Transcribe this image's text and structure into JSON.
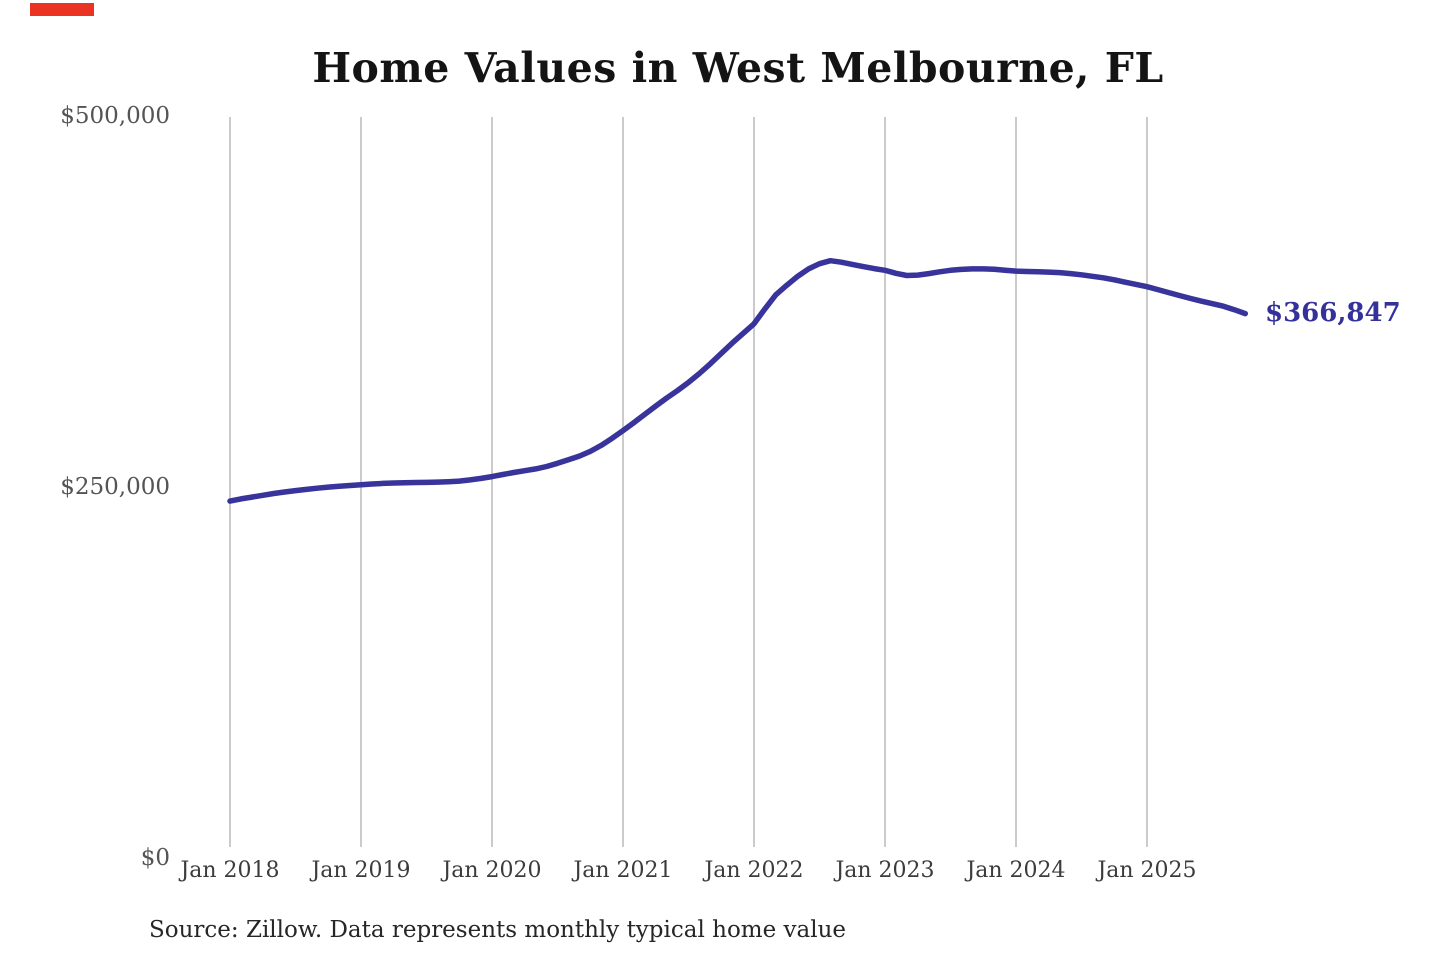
{
  "page": {
    "background": "#ffffff"
  },
  "corner_mark": {
    "color": "#eb3323"
  },
  "chart_data": {
    "type": "line",
    "title": "Home Values in West Melbourne, FL",
    "source_note": "Source: Zillow. Data represents monthly typical home value",
    "legend": "none",
    "grid": "vertical-only",
    "grid_color": "#cbcbcb",
    "y_axis": {
      "min": 0,
      "max": 500000,
      "ticks": [
        {
          "label": "$500,000",
          "value": 500000
        },
        {
          "label": "$250,000",
          "value": 250000
        },
        {
          "label": "$0",
          "value": 0
        }
      ]
    },
    "x_axis": {
      "ticks": [
        {
          "label": "Jan 2018",
          "month_index": 0
        },
        {
          "label": "Jan 2019",
          "month_index": 12
        },
        {
          "label": "Jan 2020",
          "month_index": 24
        },
        {
          "label": "Jan 2021",
          "month_index": 36
        },
        {
          "label": "Jan 2022",
          "month_index": 48
        },
        {
          "label": "Jan 2023",
          "month_index": 60
        },
        {
          "label": "Jan 2024",
          "month_index": 72
        },
        {
          "label": "Jan 2025",
          "month_index": 84
        }
      ]
    },
    "series": [
      {
        "name": "Monthly typical home value",
        "color": "#39349b",
        "start_month": "2018-01",
        "frequency": "monthly",
        "end_label": "$366,847",
        "end_value": 366847,
        "values": [
          240500,
          242000,
          243200,
          244400,
          245600,
          246600,
          247600,
          248400,
          249200,
          249900,
          250500,
          251000,
          251500,
          252000,
          252400,
          252700,
          252900,
          253000,
          253100,
          253300,
          253600,
          254000,
          254800,
          255800,
          257000,
          258400,
          259800,
          261000,
          262200,
          263800,
          266000,
          268300,
          270800,
          274000,
          278000,
          282800,
          288000,
          293400,
          299000,
          304600,
          310000,
          315000,
          320500,
          326500,
          333000,
          340000,
          347000,
          353500,
          360000,
          370000,
          379500,
          386000,
          392000,
          397000,
          400500,
          402500,
          401500,
          400000,
          398500,
          397200,
          396000,
          394000,
          392500,
          392800,
          393800,
          395000,
          396000,
          396600,
          397000,
          397000,
          396700,
          396000,
          395500,
          395200,
          395000,
          394800,
          394500,
          393800,
          393000,
          392000,
          391000,
          389600,
          388000,
          386500,
          385000,
          383000,
          381000,
          379000,
          377000,
          375200,
          373500,
          371800,
          369500,
          366847
        ]
      }
    ]
  }
}
